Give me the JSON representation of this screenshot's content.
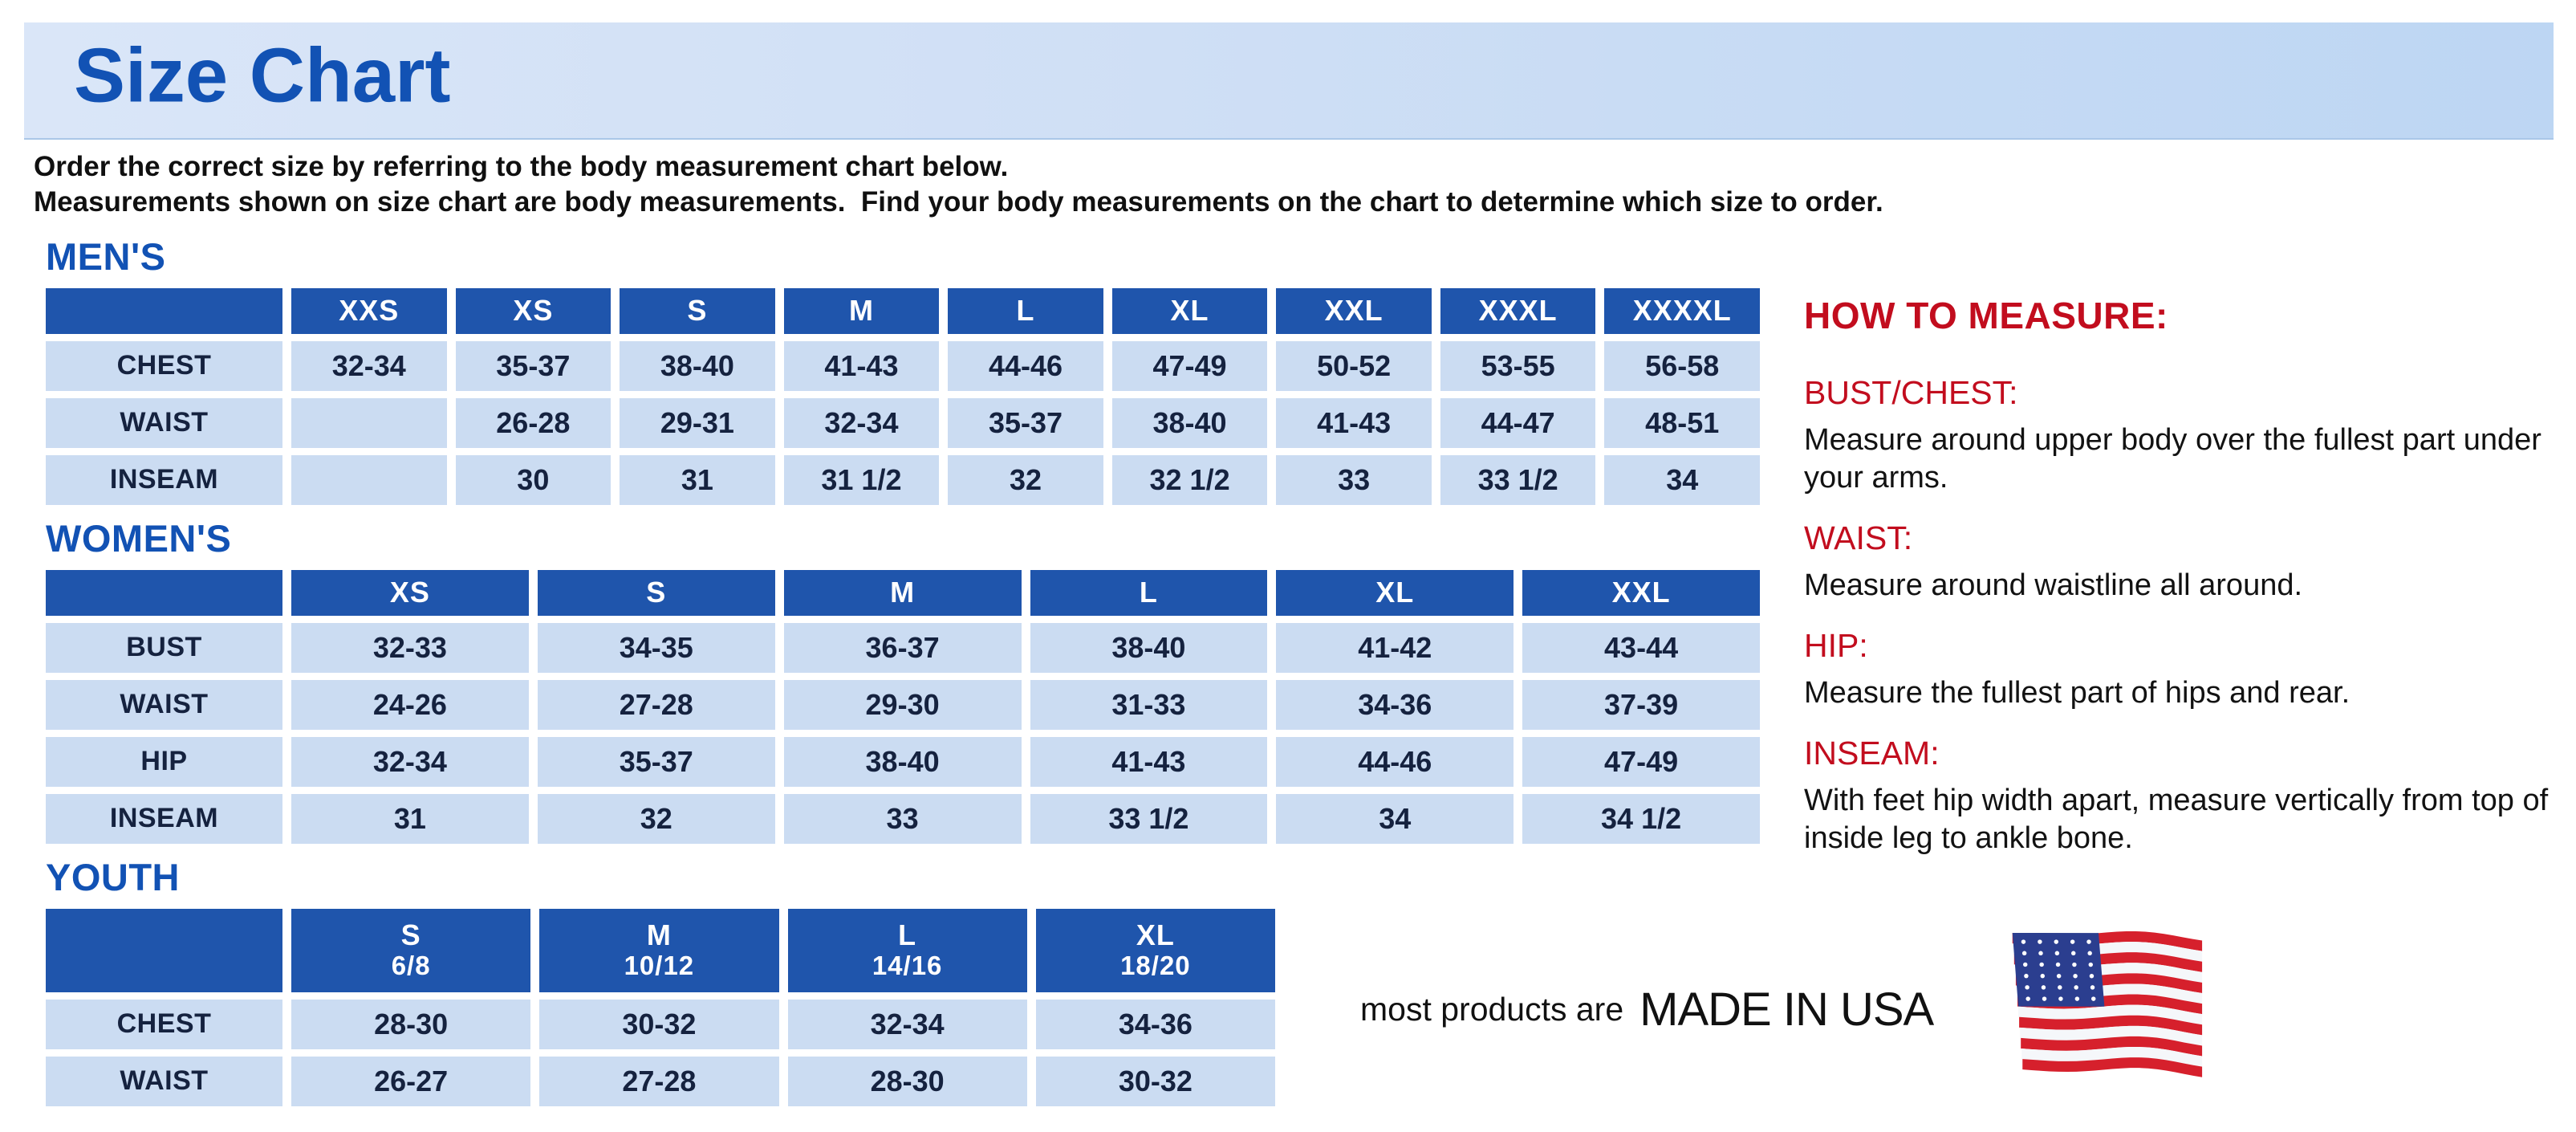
{
  "banner": {
    "title": "Size Chart"
  },
  "intro": {
    "line1": "Order the correct size by referring to the body measurement chart below.",
    "line2": "Measurements shown on size chart are body measurements.  Find your body measurements on the chart to determine which size to order."
  },
  "tables": [
    {
      "id": "mens",
      "heading": "MEN'S",
      "sizes": [
        {
          "label": "XXS",
          "sub": ""
        },
        {
          "label": "XS",
          "sub": ""
        },
        {
          "label": "S",
          "sub": ""
        },
        {
          "label": "M",
          "sub": ""
        },
        {
          "label": "L",
          "sub": ""
        },
        {
          "label": "XL",
          "sub": ""
        },
        {
          "label": "XXL",
          "sub": ""
        },
        {
          "label": "XXXL",
          "sub": ""
        },
        {
          "label": "XXXXL",
          "sub": ""
        }
      ],
      "rows": [
        {
          "label": "CHEST",
          "values": [
            "32-34",
            "35-37",
            "38-40",
            "41-43",
            "44-46",
            "47-49",
            "50-52",
            "53-55",
            "56-58"
          ]
        },
        {
          "label": "WAIST",
          "values": [
            "",
            "26-28",
            "29-31",
            "32-34",
            "35-37",
            "38-40",
            "41-43",
            "44-47",
            "48-51"
          ]
        },
        {
          "label": "INSEAM",
          "values": [
            "",
            "30",
            "31",
            "31 1/2",
            "32",
            "32 1/2",
            "33",
            "33 1/2",
            "34"
          ]
        }
      ]
    },
    {
      "id": "womens",
      "heading": "WOMEN'S",
      "sizes": [
        {
          "label": "XS",
          "sub": ""
        },
        {
          "label": "S",
          "sub": ""
        },
        {
          "label": "M",
          "sub": ""
        },
        {
          "label": "L",
          "sub": ""
        },
        {
          "label": "XL",
          "sub": ""
        },
        {
          "label": "XXL",
          "sub": ""
        }
      ],
      "rows": [
        {
          "label": "BUST",
          "values": [
            "32-33",
            "34-35",
            "36-37",
            "38-40",
            "41-42",
            "43-44"
          ]
        },
        {
          "label": "WAIST",
          "values": [
            "24-26",
            "27-28",
            "29-30",
            "31-33",
            "34-36",
            "37-39"
          ]
        },
        {
          "label": "HIP",
          "values": [
            "32-34",
            "35-37",
            "38-40",
            "41-43",
            "44-46",
            "47-49"
          ]
        },
        {
          "label": "INSEAM",
          "values": [
            "31",
            "32",
            "33",
            "33 1/2",
            "34",
            "34 1/2"
          ]
        }
      ]
    },
    {
      "id": "youth",
      "heading": "YOUTH",
      "sizes": [
        {
          "label": "S",
          "sub": "6/8"
        },
        {
          "label": "M",
          "sub": "10/12"
        },
        {
          "label": "L",
          "sub": "14/16"
        },
        {
          "label": "XL",
          "sub": "18/20"
        }
      ],
      "rows": [
        {
          "label": "CHEST",
          "values": [
            "28-30",
            "30-32",
            "32-34",
            "34-36"
          ]
        },
        {
          "label": "WAIST",
          "values": [
            "26-27",
            "27-28",
            "28-30",
            "30-32"
          ]
        }
      ]
    }
  ],
  "how_to_measure": {
    "heading": "HOW TO MEASURE:",
    "items": [
      {
        "term": "BUST/CHEST:",
        "desc": "Measure around upper body over the fullest part under your arms."
      },
      {
        "term": "WAIST:",
        "desc": "Measure around waistline all around."
      },
      {
        "term": "HIP:",
        "desc": "Measure the fullest part of hips and rear."
      },
      {
        "term": "INSEAM:",
        "desc": "With feet hip width apart, measure vertically from top of inside leg to ankle bone."
      }
    ]
  },
  "footer": {
    "prefix": "most products are",
    "emphasis": "MADE IN USA",
    "flag_icon": "us-flag-icon"
  },
  "colors": {
    "title_blue": "#1252b4",
    "header_blue": "#1f55ac",
    "cell_blue": "#cbdcf2",
    "cell_text": "#15223f",
    "red": "#c20d1e",
    "flag_red": "#d6202c",
    "flag_blue": "#2b3e8f",
    "flag_white": "#f5f7fa"
  }
}
